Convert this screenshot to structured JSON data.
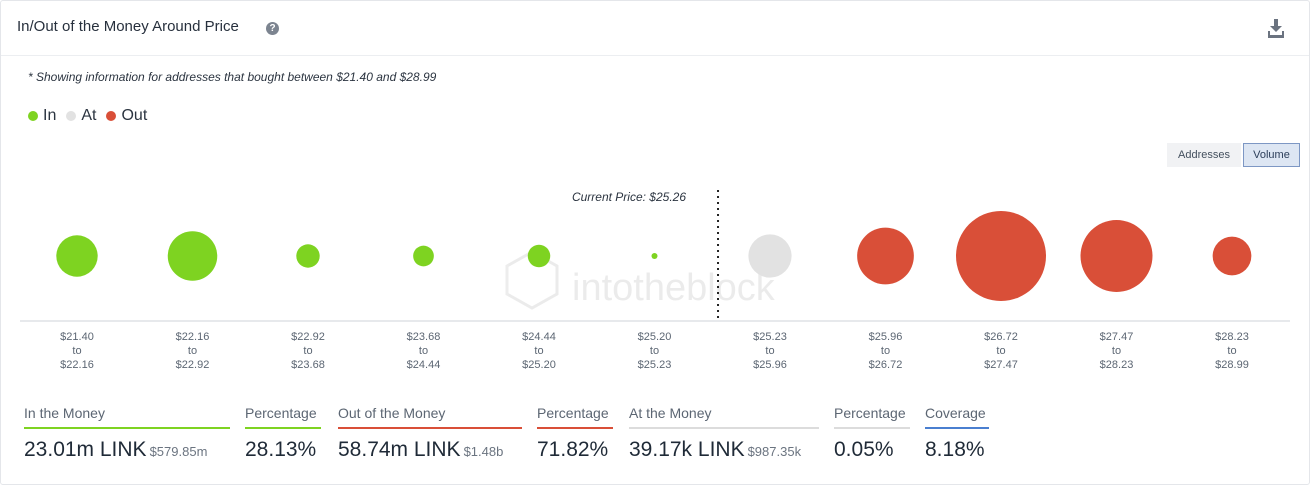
{
  "header": {
    "title": "In/Out of the Money Around Price",
    "help_icon": "?",
    "download_icon": "download-icon"
  },
  "note": "* Showing information for addresses that bought between $21.40 and $28.99",
  "legend": [
    {
      "label": "In",
      "color": "#7ed321"
    },
    {
      "label": "At",
      "color": "#e2e2e2"
    },
    {
      "label": "Out",
      "color": "#d94f38"
    }
  ],
  "toggles": {
    "addresses": "Addresses",
    "volume": "Volume",
    "selected": "Volume"
  },
  "watermark": "intotheblock",
  "chart_data": {
    "type": "bubble",
    "current_price_label": "Current Price: $25.26",
    "current_price": 25.26,
    "ranges": [
      {
        "from": "$21.40",
        "to_word": "to",
        "to": "$22.16",
        "status": "in",
        "relative_size": 0.46
      },
      {
        "from": "$22.16",
        "to_word": "to",
        "to": "$22.92",
        "status": "in",
        "relative_size": 0.55
      },
      {
        "from": "$22.92",
        "to_word": "to",
        "to": "$23.68",
        "status": "in",
        "relative_size": 0.26
      },
      {
        "from": "$23.68",
        "to_word": "to",
        "to": "$24.44",
        "status": "in",
        "relative_size": 0.23
      },
      {
        "from": "$24.44",
        "to_word": "to",
        "to": "$25.20",
        "status": "in",
        "relative_size": 0.25
      },
      {
        "from": "$25.20",
        "to_word": "to",
        "to": "$25.23",
        "status": "in",
        "relative_size": 0.045
      },
      {
        "from": "$25.23",
        "to_word": "to",
        "to": "$25.96",
        "status": "at",
        "relative_size": 0.48
      },
      {
        "from": "$25.96",
        "to_word": "to",
        "to": "$26.72",
        "status": "out",
        "relative_size": 0.63
      },
      {
        "from": "$26.72",
        "to_word": "to",
        "to": "$27.47",
        "status": "out",
        "relative_size": 1.0
      },
      {
        "from": "$27.47",
        "to_word": "to",
        "to": "$28.23",
        "status": "out",
        "relative_size": 0.8
      },
      {
        "from": "$28.23",
        "to_word": "to",
        "to": "$28.99",
        "status": "out",
        "relative_size": 0.43
      }
    ]
  },
  "stats": [
    {
      "label": "In the Money",
      "value": "23.01m LINK",
      "sub": "$579.85m",
      "color": "#7ed321"
    },
    {
      "label": "Percentage",
      "value": "28.13%",
      "sub": "",
      "color": "#7ed321"
    },
    {
      "label": "Out of the Money",
      "value": "58.74m LINK",
      "sub": "$1.48b",
      "color": "#d94f38"
    },
    {
      "label": "Percentage",
      "value": "71.82%",
      "sub": "",
      "color": "#d94f38"
    },
    {
      "label": "At the Money",
      "value": "39.17k LINK",
      "sub": "$987.35k",
      "color": "#dcdcdc"
    },
    {
      "label": "Percentage",
      "value": "0.05%",
      "sub": "",
      "color": "#dcdcdc"
    },
    {
      "label": "Coverage",
      "value": "8.18%",
      "sub": "",
      "color": "#4a7fd0"
    }
  ]
}
